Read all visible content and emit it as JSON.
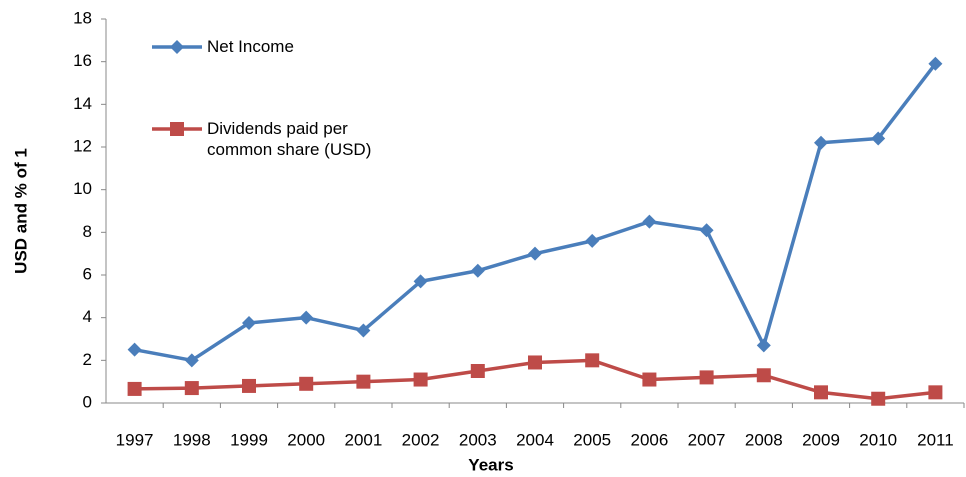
{
  "chart_data": {
    "type": "line",
    "x_label": "Years",
    "y_label": "USD and % of 1",
    "categories": [
      "1997",
      "1998",
      "1999",
      "2000",
      "2001",
      "2002",
      "2003",
      "2004",
      "2005",
      "2006",
      "2007",
      "2008",
      "2009",
      "2010",
      "2011"
    ],
    "series": [
      {
        "name": "Net Income",
        "color": "#4a7ebb",
        "marker": "diamond",
        "values": [
          2.5,
          2.0,
          3.75,
          4.0,
          3.4,
          5.7,
          6.2,
          7.0,
          7.6,
          8.5,
          8.1,
          2.7,
          12.2,
          12.4,
          15.9
        ]
      },
      {
        "name": "Dividends paid per common share (USD)",
        "color": "#be4b48",
        "marker": "square",
        "values": [
          0.66,
          0.7,
          0.8,
          0.9,
          1.0,
          1.1,
          1.5,
          1.9,
          2.0,
          1.1,
          1.2,
          1.3,
          0.5,
          0.2,
          0.5
        ]
      }
    ],
    "ylim": [
      0,
      18
    ],
    "yticks": [
      0,
      2,
      4,
      6,
      8,
      10,
      12,
      14,
      16,
      18
    ],
    "grid": false,
    "legend": "top-left"
  }
}
